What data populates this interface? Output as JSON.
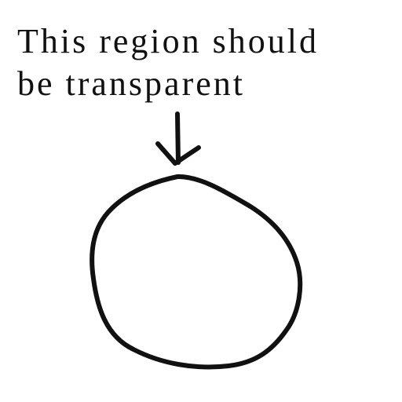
{
  "note": {
    "lines": [
      "This region should",
      "be transparent"
    ]
  },
  "sketch": {
    "stroke_color": "#111111",
    "background_color": "#ffffff",
    "elements": [
      "arrow-icon",
      "circle-outline"
    ]
  }
}
